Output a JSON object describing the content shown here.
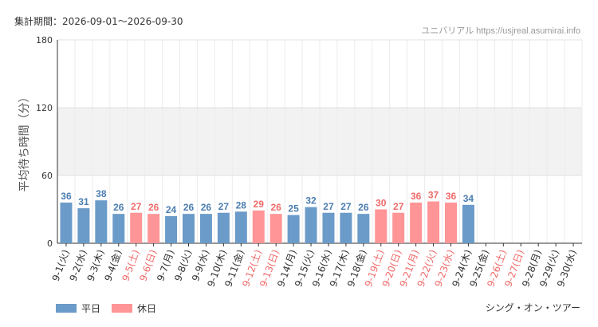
{
  "header": {
    "period": "集計期間：2026-09-01～2026-09-30",
    "site": "ユニバリアル  https://usjreal.asumirai.info"
  },
  "attraction": "シング・オン・ツアー",
  "legend": [
    {
      "label": "平日",
      "color": "#6b9bc8"
    },
    {
      "label": "休日",
      "color": "#ff9596"
    }
  ],
  "chart_data": {
    "type": "bar",
    "ylabel": "平均待ち時間（分）",
    "ylim": [
      0,
      180
    ],
    "yticks": [
      0,
      60,
      120,
      180
    ],
    "shaded_band": [
      60,
      120
    ],
    "grid": true,
    "categories": [
      "9-1(火)",
      "9-2(水)",
      "9-3(木)",
      "9-4(金)",
      "9-5(土)",
      "9-6(日)",
      "9-7(月)",
      "9-8(火)",
      "9-9(水)",
      "9-10(木)",
      "9-11(金)",
      "9-12(土)",
      "9-13(日)",
      "9-14(月)",
      "9-15(火)",
      "9-16(水)",
      "9-17(木)",
      "9-18(金)",
      "9-19(土)",
      "9-20(日)",
      "9-21(月)",
      "9-22(火)",
      "9-23(水)",
      "9-24(木)",
      "9-25(金)",
      "9-26(土)",
      "9-27(日)",
      "9-28(月)",
      "9-29(火)",
      "9-30(水)"
    ],
    "values": [
      36,
      31,
      38,
      26,
      27,
      26,
      24,
      26,
      26,
      27,
      28,
      29,
      26,
      25,
      32,
      27,
      27,
      26,
      30,
      27,
      36,
      37,
      36,
      34,
      null,
      null,
      null,
      null,
      null,
      null
    ],
    "day_type": [
      "平日",
      "平日",
      "平日",
      "平日",
      "休日",
      "休日",
      "平日",
      "平日",
      "平日",
      "平日",
      "平日",
      "休日",
      "休日",
      "平日",
      "平日",
      "平日",
      "平日",
      "平日",
      "休日",
      "休日",
      "休日",
      "休日",
      "休日",
      "平日",
      "平日",
      "休日",
      "休日",
      "平日",
      "平日",
      "平日"
    ]
  },
  "colors": {
    "weekday": "#6b9bc8",
    "holiday": "#ff9596",
    "weekday_text": "#4a7db0",
    "holiday_text": "#f06a6a"
  }
}
